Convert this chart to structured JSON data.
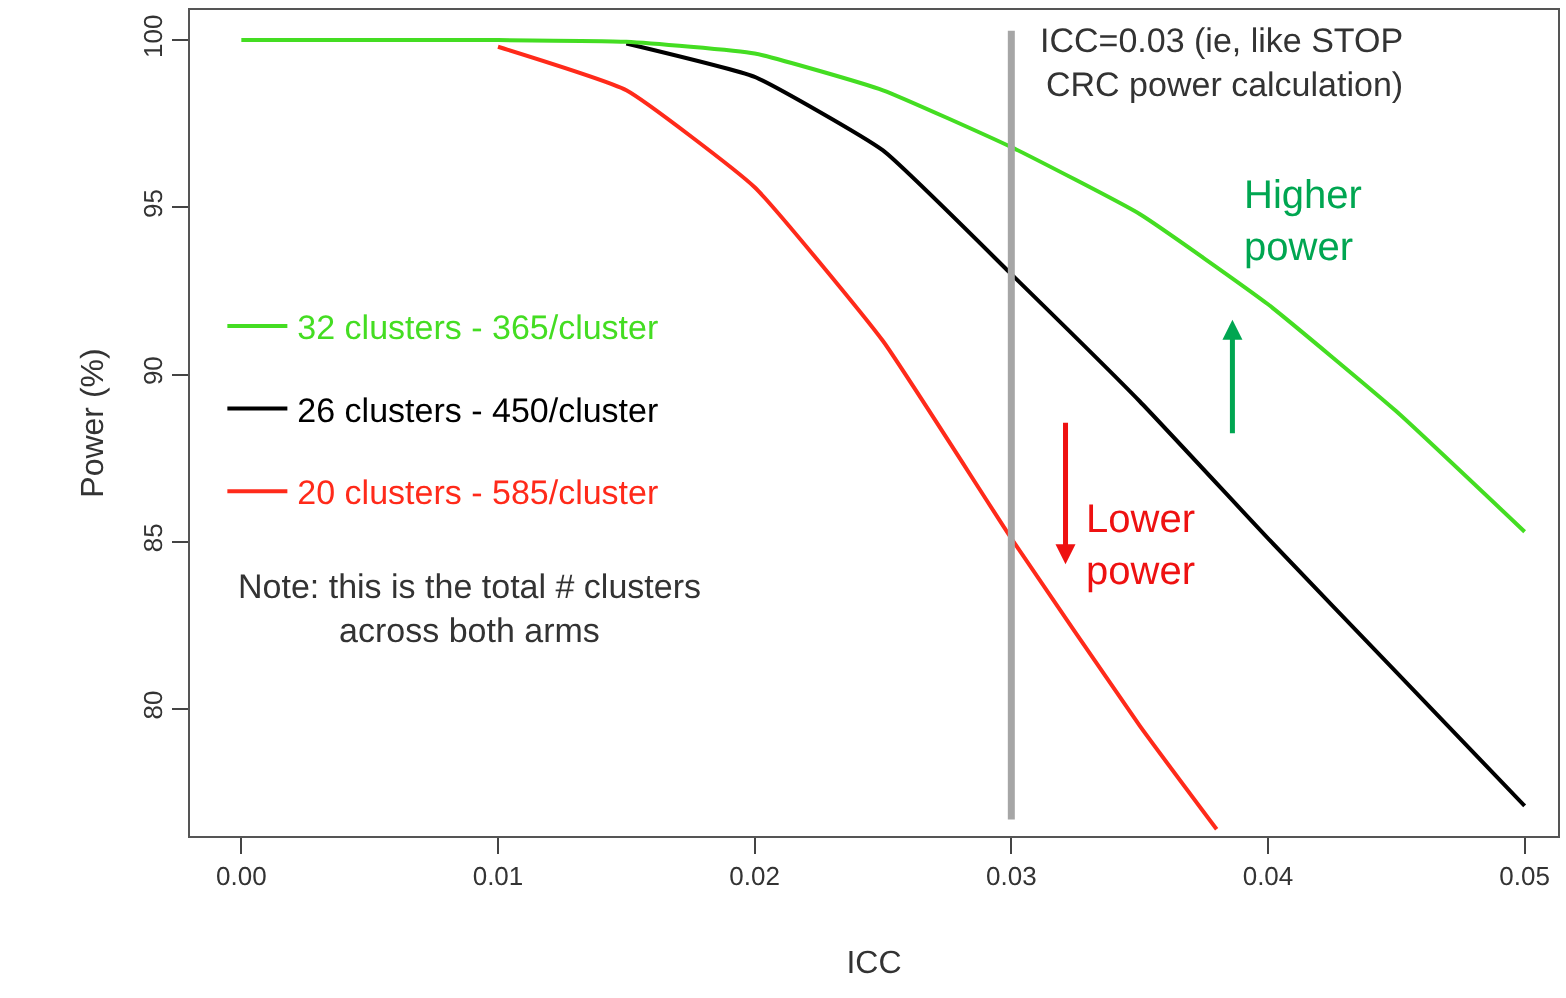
{
  "chart_data": {
    "type": "line",
    "xlabel": "ICC",
    "ylabel": "Power (%)",
    "x": [
      0,
      0.005,
      0.01,
      0.015,
      0.02,
      0.025,
      0.03,
      0.035,
      0.04,
      0.045,
      0.05
    ],
    "series": [
      {
        "name": "32 clusters - 365/cluster",
        "color": "#44dd22",
        "values": [
          100,
          100,
          100,
          99.95,
          99.6,
          98.5,
          96.8,
          94.8,
          92.1,
          88.9,
          85.3
        ]
      },
      {
        "name": "26 clusters - 450/cluster",
        "color": "#000000",
        "x": [
          0.015,
          0.02,
          0.025,
          0.03,
          0.035,
          0.04,
          0.045,
          0.05
        ],
        "values": [
          99.9,
          98.9,
          96.7,
          93.0,
          89.2,
          85.1,
          81.1,
          77.1
        ]
      },
      {
        "name": "20 clusters - 585/cluster",
        "color": "#ff2a1a",
        "x": [
          0.01,
          0.015,
          0.02,
          0.025,
          0.03,
          0.035,
          0.038
        ],
        "values": [
          99.8,
          98.5,
          95.6,
          91.0,
          85.1,
          79.5,
          76.4
        ]
      }
    ],
    "xlim": [
      -0.002,
      0.0513
    ],
    "ylim": [
      76.2,
      100.9
    ],
    "xticks": [
      {
        "value": 0,
        "label": "0.00"
      },
      {
        "value": 0.01,
        "label": "0.01"
      },
      {
        "value": 0.02,
        "label": "0.02"
      },
      {
        "value": 0.03,
        "label": "0.03"
      },
      {
        "value": 0.04,
        "label": "0.04"
      },
      {
        "value": 0.05,
        "label": "0.05"
      }
    ],
    "yticks": [
      80,
      85,
      90,
      95,
      100
    ],
    "legend": "left",
    "marker": "none",
    "line_style": "solid",
    "ref_lines": [
      {
        "axis": "x",
        "value": 0.03,
        "label": "ICC=0.03 (ie, like STOP\nCRC power calculation)",
        "color": "#a6a6a6"
      }
    ],
    "annotations": [
      "Higher\npower",
      "Lower\npower",
      "Note: this is the total # clusters\nacross both arms"
    ]
  }
}
